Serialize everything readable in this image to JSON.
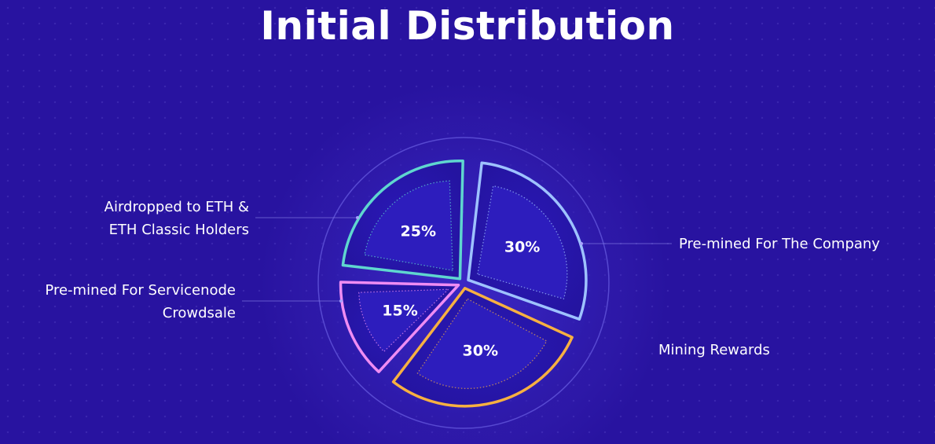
{
  "chart_data": {
    "type": "pie",
    "title": "Initial Distribution",
    "categories": [
      "Pre-mined For The Company",
      "Mining Rewards",
      "Pre-mined For Servicenode Crowdsale",
      "Airdropped to ETH & ETH Classic Holders"
    ],
    "values": [
      30,
      30,
      15,
      25
    ],
    "value_labels": [
      "30%",
      "30%",
      "15%",
      "25%"
    ],
    "colors": [
      "#9ec2ff",
      "#f7b041",
      "#ef8cf3",
      "#5fd6cf"
    ],
    "category_lines": [
      [
        "Pre-mined For The Company"
      ],
      [
        "Mining Rewards"
      ],
      [
        "Pre-mined For Servicenode",
        "Crowdsale"
      ],
      [
        "Airdropped to ETH &",
        "ETH Classic Holders"
      ]
    ]
  },
  "colors": {
    "background": "#2813a0",
    "slice_fill": "#2a1aa8",
    "ring": "#5f52d8"
  }
}
